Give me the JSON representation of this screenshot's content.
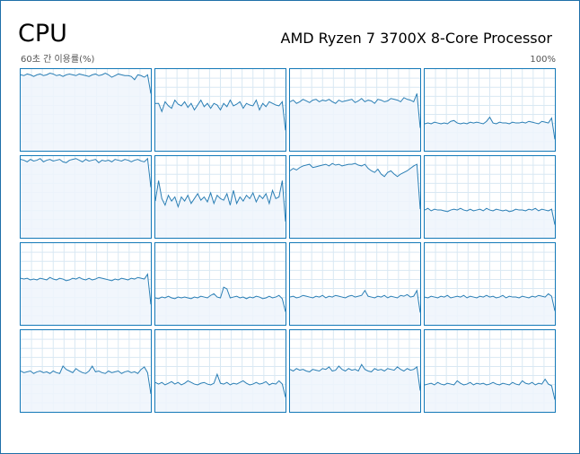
{
  "header": {
    "title": "CPU",
    "processor_name": "AMD Ryzen 7 3700X 8-Core Processor",
    "usage_label": "60초 간 이용률(%)",
    "max_label": "100%"
  },
  "colors": {
    "border": "#1479b8",
    "line": "#2b7fb5",
    "fill": "#eef5fb",
    "grid": "#d9e8f3"
  },
  "cores": [
    {
      "name": "core-1",
      "usage": [
        93,
        92,
        94,
        93,
        91,
        93,
        94,
        92,
        93,
        95,
        94,
        92,
        93,
        91,
        93,
        94,
        93,
        92,
        94,
        93,
        92,
        91,
        93,
        94,
        92,
        93,
        95,
        93,
        90,
        92,
        94,
        93,
        92,
        92,
        91,
        87,
        93,
        92,
        90,
        93,
        70
      ]
    },
    {
      "name": "core-2",
      "usage": [
        58,
        58,
        48,
        60,
        55,
        52,
        62,
        57,
        55,
        60,
        53,
        58,
        50,
        56,
        62,
        54,
        58,
        52,
        58,
        56,
        50,
        58,
        54,
        62,
        55,
        57,
        60,
        52,
        58,
        56,
        55,
        62,
        50,
        58,
        54,
        60,
        58,
        56,
        55,
        60,
        25
      ]
    },
    {
      "name": "core-3",
      "usage": [
        60,
        62,
        58,
        60,
        63,
        61,
        59,
        62,
        63,
        60,
        62,
        61,
        63,
        60,
        58,
        62,
        60,
        61,
        62,
        63,
        59,
        61,
        64,
        60,
        62,
        61,
        58,
        63,
        62,
        60,
        61,
        64,
        63,
        62,
        60,
        65,
        63,
        62,
        60,
        70,
        28
      ]
    },
    {
      "name": "core-4",
      "usage": [
        33,
        34,
        33,
        35,
        34,
        33,
        34,
        33,
        36,
        37,
        34,
        33,
        34,
        33,
        35,
        34,
        35,
        34,
        33,
        36,
        41,
        34,
        33,
        35,
        34,
        34,
        33,
        35,
        34,
        34,
        35,
        34,
        36,
        35,
        34,
        33,
        36,
        35,
        34,
        40,
        14
      ]
    },
    {
      "name": "core-5",
      "usage": [
        96,
        95,
        93,
        96,
        94,
        95,
        97,
        93,
        95,
        96,
        94,
        95,
        96,
        93,
        92,
        95,
        96,
        97,
        95,
        93,
        96,
        94,
        95,
        96,
        92,
        95,
        94,
        95,
        93,
        96,
        95,
        94,
        96,
        95,
        93,
        95,
        96,
        94,
        93,
        97,
        62
      ]
    },
    {
      "name": "core-6",
      "usage": [
        45,
        70,
        48,
        40,
        52,
        45,
        50,
        38,
        50,
        45,
        52,
        42,
        48,
        54,
        46,
        50,
        44,
        55,
        42,
        52,
        48,
        46,
        54,
        40,
        58,
        42,
        50,
        45,
        52,
        48,
        55,
        44,
        52,
        48,
        54,
        42,
        58,
        48,
        50,
        70,
        20
      ]
    },
    {
      "name": "core-7",
      "usage": [
        82,
        85,
        83,
        86,
        88,
        89,
        90,
        86,
        87,
        88,
        89,
        90,
        88,
        91,
        89,
        90,
        88,
        89,
        90,
        90,
        91,
        89,
        88,
        90,
        85,
        82,
        80,
        84,
        78,
        75,
        80,
        82,
        78,
        75,
        78,
        80,
        82,
        85,
        88,
        90,
        35
      ]
    },
    {
      "name": "core-8",
      "usage": [
        34,
        36,
        33,
        35,
        34,
        34,
        33,
        32,
        34,
        35,
        34,
        36,
        34,
        33,
        35,
        33,
        34,
        35,
        33,
        36,
        34,
        33,
        35,
        34,
        33,
        34,
        32,
        33,
        35,
        34,
        34,
        33,
        35,
        34,
        36,
        33,
        35,
        34,
        33,
        35,
        16
      ]
    },
    {
      "name": "core-9",
      "usage": [
        57,
        56,
        57,
        55,
        56,
        55,
        57,
        56,
        55,
        58,
        56,
        55,
        57,
        56,
        54,
        55,
        57,
        56,
        58,
        56,
        55,
        57,
        55,
        56,
        58,
        57,
        56,
        55,
        54,
        56,
        55,
        57,
        56,
        55,
        57,
        56,
        58,
        57,
        56,
        62,
        25
      ]
    },
    {
      "name": "core-10",
      "usage": [
        33,
        32,
        34,
        33,
        35,
        33,
        32,
        34,
        33,
        34,
        33,
        32,
        34,
        33,
        35,
        34,
        33,
        36,
        38,
        34,
        33,
        46,
        44,
        33,
        34,
        35,
        33,
        34,
        32,
        34,
        33,
        35,
        34,
        32,
        33,
        35,
        33,
        34,
        36,
        32,
        16
      ]
    },
    {
      "name": "core-11",
      "usage": [
        34,
        35,
        33,
        34,
        36,
        35,
        34,
        33,
        35,
        34,
        36,
        33,
        35,
        34,
        36,
        35,
        34,
        33,
        35,
        36,
        34,
        35,
        36,
        42,
        35,
        34,
        33,
        35,
        34,
        36,
        33,
        35,
        34,
        33,
        36,
        35,
        37,
        34,
        35,
        42,
        15
      ]
    },
    {
      "name": "core-12",
      "usage": [
        34,
        33,
        35,
        34,
        33,
        35,
        34,
        36,
        33,
        34,
        35,
        34,
        36,
        33,
        35,
        34,
        33,
        35,
        34,
        36,
        34,
        35,
        33,
        34,
        36,
        33,
        35,
        34,
        34,
        33,
        35,
        34,
        33,
        35,
        34,
        36,
        35,
        34,
        38,
        35,
        17
      ]
    },
    {
      "name": "core-13",
      "usage": [
        50,
        48,
        49,
        50,
        47,
        49,
        50,
        48,
        49,
        47,
        50,
        48,
        47,
        56,
        52,
        50,
        48,
        53,
        50,
        48,
        47,
        50,
        56,
        49,
        50,
        48,
        47,
        50,
        48,
        49,
        50,
        47,
        49,
        50,
        48,
        49,
        47,
        52,
        55,
        48,
        22
      ]
    },
    {
      "name": "core-14",
      "usage": [
        36,
        34,
        36,
        33,
        35,
        37,
        34,
        36,
        33,
        35,
        38,
        36,
        34,
        33,
        35,
        36,
        34,
        33,
        35,
        46,
        35,
        34,
        36,
        33,
        35,
        34,
        36,
        38,
        35,
        33,
        34,
        36,
        34,
        35,
        37,
        33,
        35,
        34,
        38,
        34,
        18
      ]
    },
    {
      "name": "core-15",
      "usage": [
        52,
        50,
        53,
        51,
        52,
        50,
        49,
        52,
        51,
        50,
        53,
        52,
        55,
        50,
        51,
        56,
        52,
        50,
        53,
        51,
        52,
        50,
        58,
        52,
        50,
        49,
        53,
        51,
        52,
        50,
        53,
        52,
        51,
        55,
        52,
        50,
        53,
        51,
        52,
        55,
        26
      ]
    },
    {
      "name": "core-16",
      "usage": [
        33,
        34,
        35,
        33,
        36,
        34,
        33,
        35,
        34,
        33,
        38,
        35,
        33,
        34,
        36,
        33,
        35,
        34,
        35,
        33,
        34,
        36,
        34,
        33,
        35,
        34,
        33,
        36,
        34,
        33,
        38,
        35,
        34,
        36,
        33,
        35,
        34,
        40,
        34,
        32,
        15
      ]
    }
  ]
}
